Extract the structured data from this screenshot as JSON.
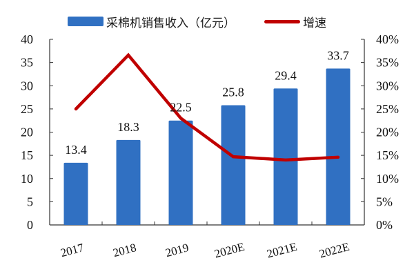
{
  "legend": {
    "bar_label": "采棉机销售收入（亿元）",
    "line_label": "增速"
  },
  "colors": {
    "bar": "#3070C2",
    "line": "#C00000",
    "axis": "#333333"
  },
  "chart_data": {
    "type": "bar+line",
    "title": "",
    "categories": [
      "2017",
      "2018",
      "2019",
      "2020E",
      "2021E",
      "2022E"
    ],
    "series": [
      {
        "name": "采棉机销售收入（亿元）",
        "type": "bar",
        "axis": "left",
        "values": [
          13.4,
          18.3,
          22.5,
          25.8,
          29.4,
          33.7
        ],
        "data_labels": [
          "13.4",
          "18.3",
          "22.5",
          "25.8",
          "29.4",
          "33.7"
        ]
      },
      {
        "name": "增速",
        "type": "line",
        "axis": "right",
        "values": [
          25.0,
          36.6,
          23.0,
          14.7,
          14.0,
          14.6
        ],
        "unit": "%"
      }
    ],
    "y_left": {
      "min": 0,
      "max": 40,
      "step": 5,
      "ticks": [
        "0",
        "5",
        "10",
        "15",
        "20",
        "25",
        "30",
        "35",
        "40"
      ]
    },
    "y_right": {
      "min": 0,
      "max": 40,
      "step": 5,
      "ticks": [
        "0%",
        "5%",
        "10%",
        "15%",
        "20%",
        "25%",
        "30%",
        "35%",
        "40%"
      ]
    },
    "xlabel": "",
    "ylabel": "",
    "grid": false,
    "legend_position": "top"
  }
}
